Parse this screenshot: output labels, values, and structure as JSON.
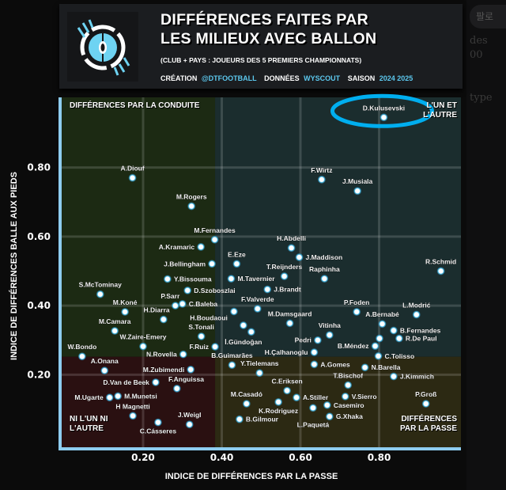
{
  "side_panel": {
    "button": "팔로",
    "texts": [
      "des",
      "00",
      "type"
    ]
  },
  "header": {
    "title_line1": "DIFFÉRENCES FAITES PAR",
    "title_line2": "LES MILIEUX AVEC BALLON",
    "subtitle": "(CLUB + PAYS : JOUEURS DES 5 PREMIERS CHAMPIONNATS)",
    "credit_label": "CRÉATION",
    "credit_handle": "@DTFOOTBALL",
    "data_label": "DONNÉES",
    "data_source": "WYSCOUT",
    "season_label": "SAISON",
    "season": "2024 2025"
  },
  "colors": {
    "accent": "#5cc8ee",
    "q_dribble": "#1c2a13",
    "q_both": "#1b2d2e",
    "q_none": "#2a1011",
    "q_pass": "#2c2913",
    "axis": "#8ecdf0",
    "highlight": "#00aeef"
  },
  "chart_data": {
    "type": "scatter",
    "title": "DIFFÉRENCES FAITES PAR LES MILIEUX AVEC BALLON",
    "xlabel": "INDICE DE DIFFÉRENCES PAR LA PASSE",
    "ylabel": "INDICE DE DIFFÉRENCES BALLE AUX PIEDS",
    "xlim": [
      -0.007,
      1.008
    ],
    "ylim": [
      -0.01,
      1.003
    ],
    "xticks": [
      0.2,
      0.4,
      0.6,
      0.8
    ],
    "yticks": [
      0.2,
      0.4,
      0.6,
      0.8
    ],
    "xtick_labels": [
      "0.20",
      "0.40",
      "0.60",
      "0.80"
    ],
    "ytick_labels": [
      "0.20",
      "0.40",
      "0.60",
      "0.80"
    ],
    "grid": true,
    "thresholds": {
      "x": 0.383,
      "y": 0.252
    },
    "quadrants": {
      "top_left": "DIFFÉRENCES PAR LA CONDUITE",
      "top_right": "L'UN ET L'AUTRE",
      "bottom_left": "NI L'UN NI L'AUTRE",
      "bottom_right": "DIFFÉRENCES PAR LA PASSE"
    },
    "highlighted": "D.Kulusevski",
    "points": [
      {
        "name": "D.Kulusevski",
        "x": 0.812,
        "y": 0.945
      },
      {
        "name": "A.Diouf",
        "x": 0.173,
        "y": 0.77
      },
      {
        "name": "F.Wirtz",
        "x": 0.654,
        "y": 0.765
      },
      {
        "name": "J.Musiala",
        "x": 0.745,
        "y": 0.732
      },
      {
        "name": "M.Rogers",
        "x": 0.323,
        "y": 0.688
      },
      {
        "name": "M.Fernandes",
        "x": 0.382,
        "y": 0.591
      },
      {
        "name": "A.Kramaric",
        "x": 0.347,
        "y": 0.57
      },
      {
        "name": "H.Abdelli",
        "x": 0.577,
        "y": 0.567
      },
      {
        "name": "J.Maddison",
        "x": 0.597,
        "y": 0.54
      },
      {
        "name": "J.Bellingham",
        "x": 0.375,
        "y": 0.521
      },
      {
        "name": "E.Eze",
        "x": 0.438,
        "y": 0.521
      },
      {
        "name": "R.Schmid",
        "x": 0.957,
        "y": 0.5
      },
      {
        "name": "T.Reijnders",
        "x": 0.559,
        "y": 0.485
      },
      {
        "name": "M.Tavernier",
        "x": 0.424,
        "y": 0.478
      },
      {
        "name": "Raphinha",
        "x": 0.661,
        "y": 0.478
      },
      {
        "name": "Y.Bissouma",
        "x": 0.262,
        "y": 0.477
      },
      {
        "name": "J.Brandt",
        "x": 0.516,
        "y": 0.447
      },
      {
        "name": "D.Szoboszlai",
        "x": 0.313,
        "y": 0.444
      },
      {
        "name": "S.McTominay",
        "x": 0.091,
        "y": 0.433
      },
      {
        "name": "C.Baleba",
        "x": 0.3,
        "y": 0.405
      },
      {
        "name": "P.Sarr",
        "x": 0.282,
        "y": 0.4
      },
      {
        "name": "F.Valverde",
        "x": 0.491,
        "y": 0.391
      },
      {
        "name": "H.Boudaoui",
        "x": 0.431,
        "y": 0.383
      },
      {
        "name": "M.Koné",
        "x": 0.154,
        "y": 0.382
      },
      {
        "name": "P.Foden",
        "x": 0.743,
        "y": 0.382
      },
      {
        "name": "L.Modrić",
        "x": 0.895,
        "y": 0.374
      },
      {
        "name": "H.Diarra",
        "x": 0.252,
        "y": 0.36
      },
      {
        "name": "M.Damsgaard",
        "x": 0.573,
        "y": 0.349
      },
      {
        "name": "A.Bernabé",
        "x": 0.808,
        "y": 0.347
      },
      {
        "name": "İ.Gündoğan",
        "x": 0.455,
        "y": 0.343
      },
      {
        "name": "B.Fernandes",
        "x": 0.837,
        "y": 0.328
      },
      {
        "name": "M.Camara",
        "x": 0.128,
        "y": 0.327
      },
      {
        "name": "",
        "x": 0.475,
        "y": 0.324
      },
      {
        "name": "Vitinha",
        "x": 0.674,
        "y": 0.315
      },
      {
        "name": "S.Tonali",
        "x": 0.348,
        "y": 0.311
      },
      {
        "name": "R.De Paul",
        "x": 0.851,
        "y": 0.305
      },
      {
        "name": "",
        "x": 0.801,
        "y": 0.305
      },
      {
        "name": "Pedri",
        "x": 0.644,
        "y": 0.3
      },
      {
        "name": "B.Méndez",
        "x": 0.79,
        "y": 0.283
      },
      {
        "name": "W.Zaire-Emery",
        "x": 0.2,
        "y": 0.282
      },
      {
        "name": "F.Ruiz",
        "x": 0.383,
        "y": 0.281
      },
      {
        "name": "H.Çalhanoglu",
        "x": 0.635,
        "y": 0.265
      },
      {
        "name": "N.Rovella",
        "x": 0.302,
        "y": 0.259
      },
      {
        "name": "C.Tolisso",
        "x": 0.798,
        "y": 0.254
      },
      {
        "name": "W.Bondo",
        "x": 0.045,
        "y": 0.253
      },
      {
        "name": "A.Gomes",
        "x": 0.635,
        "y": 0.23
      },
      {
        "name": "B.Guimarães",
        "x": 0.426,
        "y": 0.228
      },
      {
        "name": "N.Barella",
        "x": 0.764,
        "y": 0.221
      },
      {
        "name": "M.Zubimendi",
        "x": 0.321,
        "y": 0.215
      },
      {
        "name": "A.Onana",
        "x": 0.102,
        "y": 0.212
      },
      {
        "name": "Y.Tielemans",
        "x": 0.496,
        "y": 0.205
      },
      {
        "name": "J.Kimmich",
        "x": 0.837,
        "y": 0.195
      },
      {
        "name": "D.Van de Beek",
        "x": 0.232,
        "y": 0.178
      },
      {
        "name": "T.Bischof",
        "x": 0.721,
        "y": 0.17
      },
      {
        "name": "F.Anguissa",
        "x": 0.286,
        "y": 0.16
      },
      {
        "name": "C.Eriksen",
        "x": 0.566,
        "y": 0.154
      },
      {
        "name": "M.Munetsi",
        "x": 0.136,
        "y": 0.138
      },
      {
        "name": "V.Sierro",
        "x": 0.714,
        "y": 0.137
      },
      {
        "name": "M.Ugarte",
        "x": 0.115,
        "y": 0.134
      },
      {
        "name": "A.Stiller",
        "x": 0.59,
        "y": 0.134
      },
      {
        "name": "K.Rodriguez",
        "x": 0.544,
        "y": 0.121
      },
      {
        "name": "M.Casadó",
        "x": 0.463,
        "y": 0.116
      },
      {
        "name": "P.Groß",
        "x": 0.919,
        "y": 0.116
      },
      {
        "name": "Casemiro",
        "x": 0.668,
        "y": 0.112
      },
      {
        "name": "L.Paquetá",
        "x": 0.632,
        "y": 0.104
      },
      {
        "name": "H Magnetti",
        "x": 0.174,
        "y": 0.081
      },
      {
        "name": "G.Xhaka",
        "x": 0.674,
        "y": 0.079
      },
      {
        "name": "B.Gilmour",
        "x": 0.445,
        "y": 0.071
      },
      {
        "name": "C.Cásseres",
        "x": 0.238,
        "y": 0.062
      },
      {
        "name": "J.Weigl",
        "x": 0.318,
        "y": 0.056
      }
    ]
  }
}
